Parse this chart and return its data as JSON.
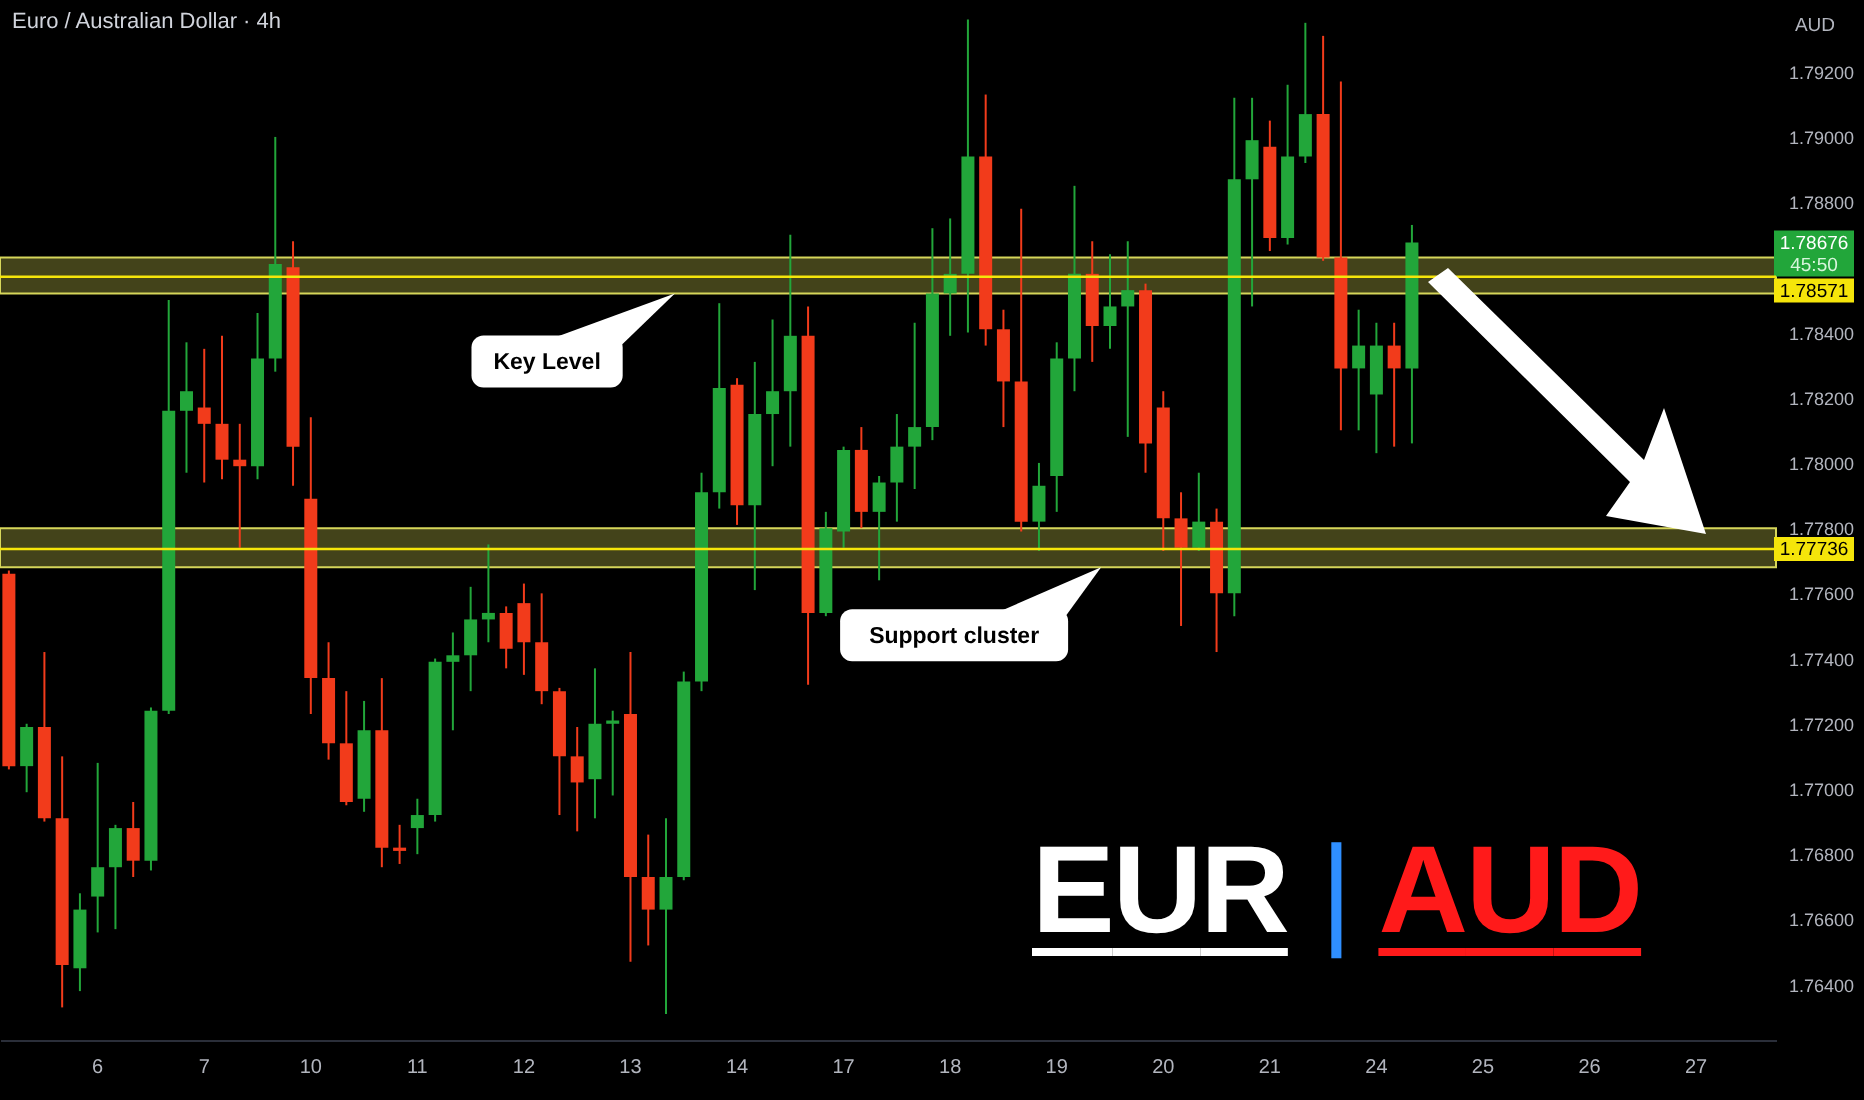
{
  "chart_data": {
    "type": "candlestick",
    "title": "Euro / Australian Dollar · 4h",
    "subtitle": "EUR | AUD",
    "ylabel": "AUD",
    "categories": [
      null,
      null,
      null,
      null,
      null,
      "6",
      null,
      null,
      null,
      null,
      null,
      "7",
      null,
      null,
      null,
      null,
      null,
      "10",
      null,
      null,
      null,
      null,
      null,
      "11",
      null,
      null,
      null,
      null,
      null,
      "12",
      null,
      null,
      null,
      null,
      null,
      "13",
      null,
      null,
      null,
      null,
      null,
      "14",
      null,
      null,
      null,
      null,
      null,
      "17",
      null,
      null,
      null,
      null,
      null,
      "18",
      null,
      null,
      null,
      null,
      null,
      "19",
      null,
      null,
      null,
      null,
      null,
      "20",
      null,
      null,
      null,
      null,
      null,
      "21",
      null,
      null,
      null,
      null,
      null,
      "24",
      null,
      null,
      null,
      null,
      null,
      "25",
      null,
      null,
      null,
      null,
      null,
      "26",
      null,
      null,
      null,
      null,
      null,
      "27",
      null,
      null,
      null,
      null
    ],
    "ohlc": [
      [
        1.7766,
        1.7767,
        1.7706,
        1.7707
      ],
      [
        1.7707,
        1.772,
        1.7699,
        1.7719
      ],
      [
        1.7719,
        1.7742,
        1.769,
        1.7691
      ],
      [
        1.7691,
        1.771,
        1.7633,
        1.7646
      ],
      [
        1.7645,
        1.7668,
        1.7638,
        1.7663
      ],
      [
        1.7667,
        1.7708,
        1.7656,
        1.7676
      ],
      [
        1.7676,
        1.7689,
        1.7657,
        1.7688
      ],
      [
        1.7688,
        1.7696,
        1.7673,
        1.7678
      ],
      [
        1.7678,
        1.7725,
        1.7675,
        1.7724
      ],
      [
        1.7724,
        1.785,
        1.7723,
        1.7816
      ],
      [
        1.7816,
        1.7837,
        1.7797,
        1.7822
      ],
      [
        1.7817,
        1.7835,
        1.7794,
        1.7812
      ],
      [
        1.7812,
        1.7839,
        1.7795,
        1.7801
      ],
      [
        1.7801,
        1.7812,
        1.7774,
        1.7799
      ],
      [
        1.7799,
        1.7846,
        1.7795,
        1.7832
      ],
      [
        1.7832,
        1.79,
        1.7828,
        1.7861
      ],
      [
        1.786,
        1.7868,
        1.7793,
        1.7805
      ],
      [
        1.7789,
        1.7814,
        1.7723,
        1.7734
      ],
      [
        1.7734,
        1.7745,
        1.7709,
        1.7714
      ],
      [
        1.7714,
        1.773,
        1.7695,
        1.7696
      ],
      [
        1.7697,
        1.7727,
        1.7693,
        1.7718
      ],
      [
        1.7718,
        1.7734,
        1.7676,
        1.7682
      ],
      [
        1.7682,
        1.7689,
        1.7677,
        1.7681
      ],
      [
        1.7688,
        1.7697,
        1.768,
        1.7692
      ],
      [
        1.7692,
        1.774,
        1.769,
        1.7739
      ],
      [
        1.7739,
        1.7748,
        1.7718,
        1.7741
      ],
      [
        1.7741,
        1.7762,
        1.773,
        1.7752
      ],
      [
        1.7752,
        1.7775,
        1.7745,
        1.7754
      ],
      [
        1.7754,
        1.7756,
        1.7737,
        1.7743
      ],
      [
        1.7757,
        1.7763,
        1.7735,
        1.7745
      ],
      [
        1.7745,
        1.776,
        1.7726,
        1.773
      ],
      [
        1.773,
        1.7731,
        1.7692,
        1.771
      ],
      [
        1.771,
        1.7719,
        1.7687,
        1.7702
      ],
      [
        1.7703,
        1.7737,
        1.7691,
        1.772
      ],
      [
        1.772,
        1.7724,
        1.7698,
        1.7721
      ],
      [
        1.7723,
        1.7742,
        1.7647,
        1.7673
      ],
      [
        1.7673,
        1.7686,
        1.7652,
        1.7663
      ],
      [
        1.7663,
        1.7691,
        1.7631,
        1.7673
      ],
      [
        1.7673,
        1.7736,
        1.7672,
        1.7733
      ],
      [
        1.7733,
        1.7797,
        1.773,
        1.7791
      ],
      [
        1.7791,
        1.7849,
        1.7786,
        1.7823
      ],
      [
        1.7824,
        1.7826,
        1.7781,
        1.7787
      ],
      [
        1.7787,
        1.7831,
        1.7761,
        1.7815
      ],
      [
        1.7815,
        1.7844,
        1.7799,
        1.7822
      ],
      [
        1.7822,
        1.787,
        1.7805,
        1.7839
      ],
      [
        1.7839,
        1.7848,
        1.7732,
        1.7754
      ],
      [
        1.7754,
        1.7785,
        1.7753,
        1.778
      ],
      [
        1.7779,
        1.7805,
        1.7774,
        1.7804
      ],
      [
        1.7804,
        1.7811,
        1.778,
        1.7785
      ],
      [
        1.7785,
        1.7796,
        1.7764,
        1.7794
      ],
      [
        1.7794,
        1.7815,
        1.7782,
        1.7805
      ],
      [
        1.7805,
        1.7843,
        1.7792,
        1.7811
      ],
      [
        1.7811,
        1.7872,
        1.7807,
        1.7852
      ],
      [
        1.7852,
        1.7875,
        1.7839,
        1.7858
      ],
      [
        1.7858,
        1.7936,
        1.784,
        1.7894
      ],
      [
        1.7894,
        1.7913,
        1.7836,
        1.7841
      ],
      [
        1.7841,
        1.7847,
        1.7811,
        1.7825
      ],
      [
        1.7825,
        1.7878,
        1.7779,
        1.7782
      ],
      [
        1.7782,
        1.78,
        1.7773,
        1.7793
      ],
      [
        1.7796,
        1.7837,
        1.7785,
        1.7832
      ],
      [
        1.7832,
        1.7885,
        1.7822,
        1.7858
      ],
      [
        1.7858,
        1.7868,
        1.7831,
        1.7842
      ],
      [
        1.7842,
        1.7864,
        1.7835,
        1.7848
      ],
      [
        1.7848,
        1.7868,
        1.7808,
        1.7853
      ],
      [
        1.7853,
        1.7855,
        1.7797,
        1.7806
      ],
      [
        1.7817,
        1.7822,
        1.7773,
        1.7783
      ],
      [
        1.7783,
        1.7791,
        1.775,
        1.7774
      ],
      [
        1.7774,
        1.7797,
        1.7773,
        1.7782
      ],
      [
        1.7782,
        1.7786,
        1.7742,
        1.776
      ],
      [
        1.776,
        1.7912,
        1.7753,
        1.7887
      ],
      [
        1.7887,
        1.7912,
        1.7848,
        1.7899
      ],
      [
        1.7897,
        1.7905,
        1.7865,
        1.7869
      ],
      [
        1.7869,
        1.7916,
        1.7867,
        1.7894
      ],
      [
        1.7894,
        1.7935,
        1.7892,
        1.7907
      ],
      [
        1.7907,
        1.7931,
        1.7862,
        1.7863
      ],
      [
        1.7863,
        1.7917,
        1.781,
        1.7829
      ],
      [
        1.7829,
        1.7847,
        1.781,
        1.7836
      ],
      [
        1.7821,
        1.7843,
        1.7803,
        1.7836
      ],
      [
        1.7836,
        1.7843,
        1.7805,
        1.7829
      ],
      [
        1.7829,
        1.7873,
        1.7806,
        1.78676
      ],
      null,
      null,
      null,
      null,
      null,
      null,
      null,
      null,
      null,
      null,
      null,
      null,
      null,
      null,
      null,
      null,
      null,
      null,
      null,
      null
    ],
    "colors": [
      "#f23b1b",
      "#22a63a",
      "#f23b1b",
      "#f23b1b",
      "#22a63a",
      "#22a63a",
      "#22a63a",
      "#f23b1b",
      "#22a63a",
      "#22a63a",
      "#22a63a",
      "#f23b1b",
      "#f23b1b",
      "#f23b1b",
      "#22a63a",
      "#22a63a",
      "#f23b1b",
      "#f23b1b",
      "#f23b1b",
      "#f23b1b",
      "#22a63a",
      "#f23b1b",
      "#f23b1b",
      "#22a63a",
      "#22a63a",
      "#22a63a",
      "#22a63a",
      "#22a63a",
      "#f23b1b",
      "#f23b1b",
      "#f23b1b",
      "#f23b1b",
      "#f23b1b",
      "#22a63a",
      "#22a63a",
      "#f23b1b",
      "#f23b1b",
      "#22a63a",
      "#22a63a",
      "#22a63a",
      "#22a63a",
      "#f23b1b",
      "#22a63a",
      "#22a63a",
      "#22a63a",
      "#f23b1b",
      "#22a63a",
      "#22a63a",
      "#f23b1b",
      "#22a63a",
      "#22a63a",
      "#22a63a",
      "#22a63a",
      "#22a63a",
      "#22a63a",
      "#f23b1b",
      "#f23b1b",
      "#f23b1b",
      "#22a63a",
      "#22a63a",
      "#22a63a",
      "#f23b1b",
      "#22a63a",
      "#22a63a",
      "#f23b1b",
      "#f23b1b",
      "#f23b1b",
      "#22a63a",
      "#f23b1b",
      "#22a63a",
      "#22a63a",
      "#f23b1b",
      "#22a63a",
      "#22a63a",
      "#f23b1b",
      "#f23b1b",
      "#22a63a",
      "#22a63a",
      "#f23b1b",
      "#22a63a",
      null,
      null,
      null,
      null,
      null,
      null,
      null,
      null,
      null,
      null,
      null,
      null,
      null,
      null,
      null,
      null,
      null,
      null,
      null,
      null
    ],
    "ylim": [
      1.7623,
      1.7942
    ],
    "yticks": [
      {
        "value": 1.764,
        "label": "1.76400"
      },
      {
        "value": 1.766,
        "label": "1.76600"
      },
      {
        "value": 1.768,
        "label": "1.76800"
      },
      {
        "value": 1.77,
        "label": "1.77000"
      },
      {
        "value": 1.772,
        "label": "1.77200"
      },
      {
        "value": 1.774,
        "label": "1.77400"
      },
      {
        "value": 1.776,
        "label": "1.77600"
      },
      {
        "value": 1.778,
        "label": "1.77800"
      },
      {
        "value": 1.78,
        "label": "1.78000"
      },
      {
        "value": 1.782,
        "label": "1.78200"
      },
      {
        "value": 1.784,
        "label": "1.78400"
      },
      {
        "value": 1.788,
        "label": "1.78800"
      },
      {
        "value": 1.79,
        "label": "1.79000"
      },
      {
        "value": 1.792,
        "label": "1.79200"
      }
    ],
    "bands": [
      {
        "axis": "y",
        "from": 1.7852,
        "to": 1.7863,
        "color": "#7a7a30",
        "label": "Key Level"
      },
      {
        "axis": "y",
        "from": 1.7768,
        "to": 1.778,
        "color": "#7a7a30",
        "label": "Support cluster"
      }
    ],
    "ref_lines": [
      {
        "axis": "y",
        "value": 1.78571,
        "label": "1.78571",
        "color": "#f5e50a"
      },
      {
        "axis": "y",
        "value": 1.77736,
        "label": "1.77736",
        "color": "#f5e50a"
      }
    ],
    "annotations": [
      "1.78676",
      "45:50"
    ]
  }
}
